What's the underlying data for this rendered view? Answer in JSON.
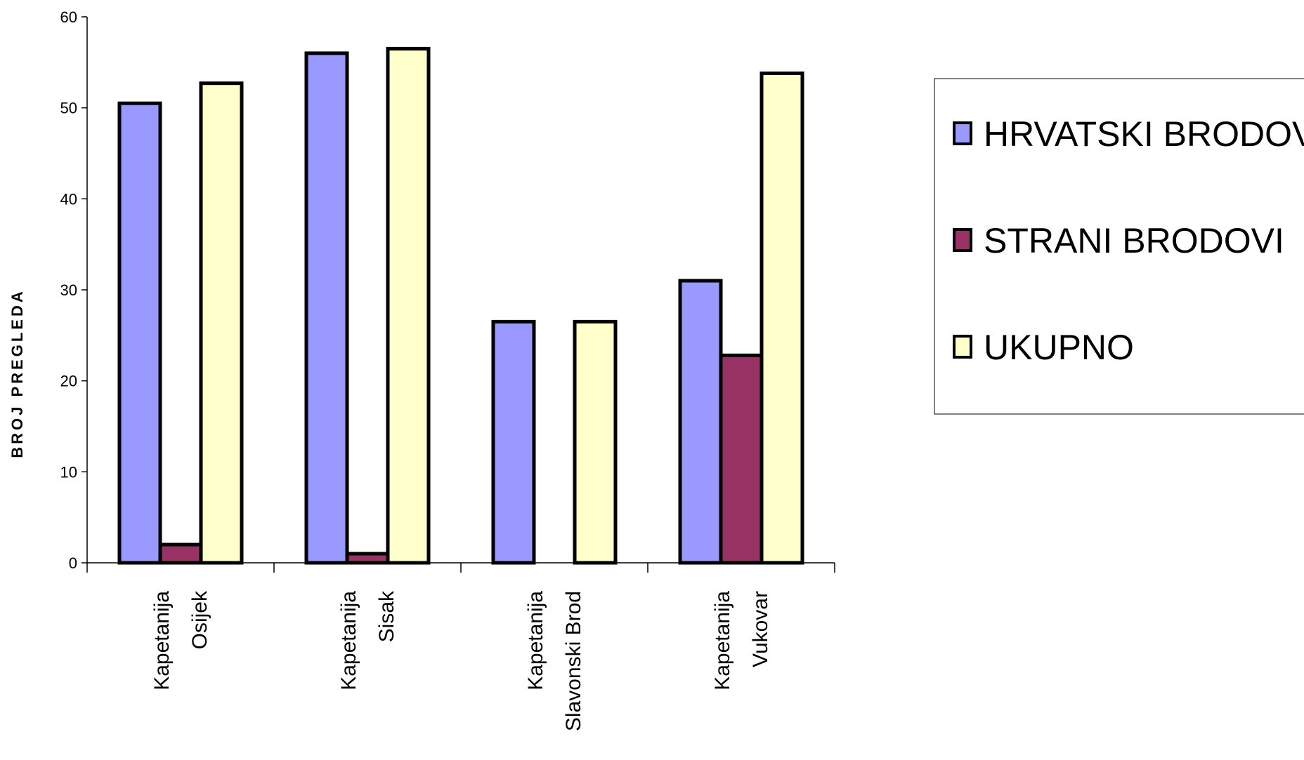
{
  "chart_data": {
    "type": "bar",
    "title": "",
    "xlabel": "",
    "ylabel": "BROJ PREGLEDA",
    "ylim": [
      0,
      60
    ],
    "yticks": [
      0,
      10,
      20,
      30,
      40,
      50,
      60
    ],
    "grid": false,
    "legend_position": "right",
    "categories": [
      [
        "Kapetanija",
        "Osijek"
      ],
      [
        "Kapetanija",
        "Sisak"
      ],
      [
        "Kapetanija",
        "Slavonski Brod"
      ],
      [
        "Kapetanija",
        "Vukovar"
      ]
    ],
    "series": [
      {
        "name": "HRVATSKI BRODOVI",
        "color": "#9999ff",
        "values": [
          50.5,
          56,
          26.5,
          31
        ]
      },
      {
        "name": "STRANI BRODOVI",
        "color": "#993366",
        "values": [
          2,
          1,
          0,
          22.8
        ]
      },
      {
        "name": "UKUPNO",
        "color": "#ffffcc",
        "values": [
          52.7,
          56.5,
          26.5,
          53.8
        ]
      }
    ]
  }
}
